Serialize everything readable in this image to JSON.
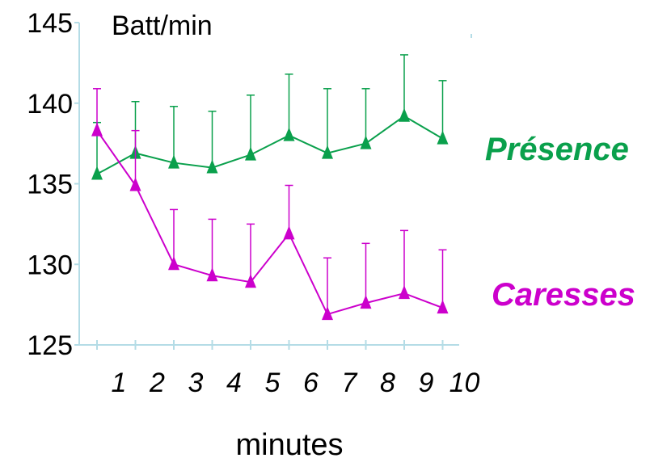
{
  "chart_data": {
    "type": "line",
    "title": "",
    "ylabel": "Batt/min",
    "xlabel": "minutes",
    "x": [
      1,
      2,
      3,
      4,
      5,
      6,
      7,
      8,
      9,
      10
    ],
    "x_tick_labels": [
      "1",
      "2",
      "3",
      "4",
      "5",
      "6",
      "7",
      "8",
      "9",
      "10"
    ],
    "y_ticks": [
      125,
      130,
      135,
      140,
      145
    ],
    "ylim": [
      125,
      145
    ],
    "grid": false,
    "legend_placement": "right",
    "series": [
      {
        "name": "Présence",
        "color": "#0aa04c",
        "values": [
          135.6,
          136.9,
          136.3,
          136.0,
          136.8,
          138.0,
          136.9,
          137.5,
          139.2,
          137.8
        ],
        "error_upper": [
          138.8,
          140.1,
          139.8,
          139.5,
          140.5,
          141.8,
          140.9,
          140.9,
          143.0,
          141.4
        ]
      },
      {
        "name": "Caresses",
        "color": "#cc00cc",
        "values": [
          138.3,
          134.9,
          130.0,
          129.3,
          128.9,
          131.9,
          126.9,
          127.6,
          128.2,
          127.3
        ],
        "error_upper": [
          140.9,
          138.3,
          133.4,
          132.8,
          132.5,
          134.9,
          130.4,
          131.3,
          132.1,
          130.9
        ]
      }
    ]
  }
}
